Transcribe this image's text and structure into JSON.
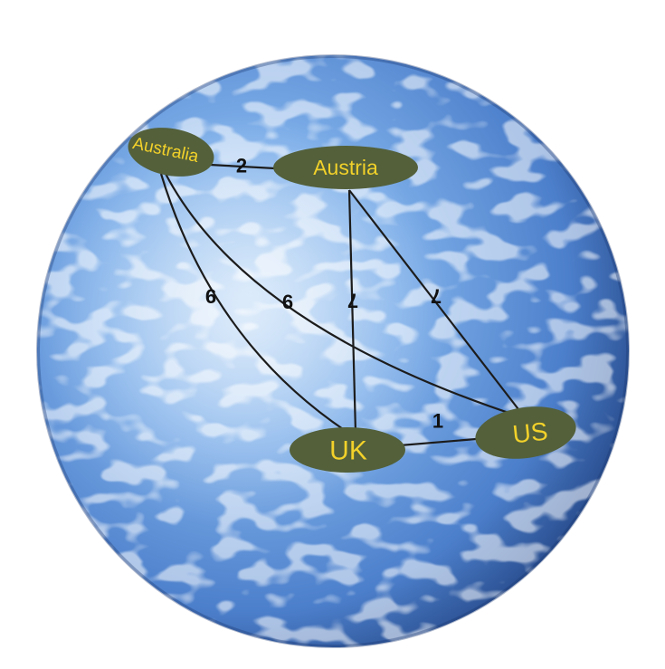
{
  "diagram": {
    "type": "weighted-graph-on-sphere",
    "colors": {
      "sphere_light": "#bcd9f7",
      "sphere_mid": "#5b8fd6",
      "sphere_dark": "#1f3f7d",
      "node_fill": "#53603a",
      "node_text": "#f2d12a",
      "edge": "#1c1c1c",
      "edge_label": "#111111"
    },
    "nodes": {
      "australia": {
        "label": "Australia"
      },
      "austria": {
        "label": "Austria"
      },
      "uk": {
        "label": "UK"
      },
      "us": {
        "label": "US"
      }
    },
    "edges": [
      {
        "id": "australia-austria",
        "from": "Australia",
        "to": "Austria",
        "weight": "2"
      },
      {
        "id": "australia-uk",
        "from": "Australia",
        "to": "UK",
        "weight": "9"
      },
      {
        "id": "australia-us",
        "from": "Australia",
        "to": "US",
        "weight": "9"
      },
      {
        "id": "austria-uk",
        "from": "Austria",
        "to": "UK",
        "weight": "7"
      },
      {
        "id": "austria-us",
        "from": "Austria",
        "to": "US",
        "weight": "7"
      },
      {
        "id": "uk-us",
        "from": "UK",
        "to": "US",
        "weight": "1"
      }
    ]
  }
}
